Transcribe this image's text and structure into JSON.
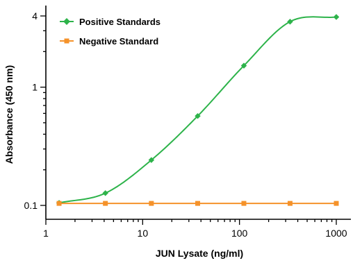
{
  "chart_data": {
    "type": "scatter",
    "xlabel": "JUN Lysate (ng/ml)",
    "ylabel": "Absorbance (450 nm)",
    "xscale": "log",
    "yscale": "log",
    "xlim": [
      1,
      1000
    ],
    "ylim": [
      0.1,
      4
    ],
    "x_ticks": [
      "1",
      "10",
      "100",
      "1000"
    ],
    "y_ticks": [
      "0.1",
      "1",
      "4"
    ],
    "legend_position": "top-left",
    "grid": false,
    "series": [
      {
        "name": "Positive Standards",
        "color": "#2db34a",
        "marker": "diamond",
        "fit_curve": true,
        "x": [
          1.37,
          4.12,
          12.3,
          37.0,
          111,
          333,
          1000
        ],
        "y": [
          0.105,
          0.127,
          0.242,
          0.57,
          1.52,
          3.58,
          3.92
        ]
      },
      {
        "name": "Negative Standard",
        "color": "#f5922a",
        "marker": "square",
        "fit_curve": false,
        "x": [
          1.37,
          4.12,
          12.3,
          37.0,
          111,
          333,
          1000
        ],
        "y": [
          0.104,
          0.104,
          0.104,
          0.104,
          0.104,
          0.104,
          0.104
        ]
      }
    ]
  }
}
